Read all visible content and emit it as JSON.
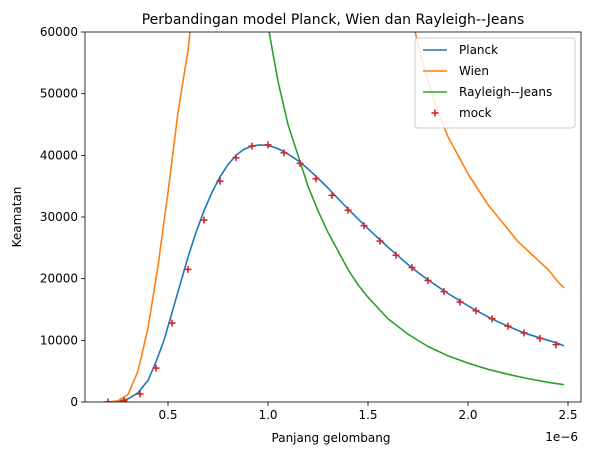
{
  "chart_data": {
    "type": "line",
    "title": "Perbandingan model Planck, Wien dan Rayleigh--Jeans",
    "xlabel": "Panjang gelombang",
    "ylabel": "Keamatan",
    "x_offset_label": "1e−6",
    "xlim": [
      0.085,
      2.565
    ],
    "ylim": [
      0,
      60000
    ],
    "xticks": [
      0.5,
      1.0,
      1.5,
      2.0,
      2.5
    ],
    "xtick_labels": [
      "0.5",
      "1.0",
      "1.5",
      "2.0",
      "2.5"
    ],
    "yticks": [
      0,
      10000,
      20000,
      30000,
      40000,
      50000,
      60000
    ],
    "ytick_labels": [
      "0",
      "10000",
      "20000",
      "30000",
      "40000",
      "50000",
      "60000"
    ],
    "legend_position": "upper right",
    "series": [
      {
        "name": "Planck",
        "kind": "line",
        "color": "#1f77b4",
        "x": [
          0.2,
          0.25,
          0.3,
          0.35,
          0.4,
          0.44,
          0.48,
          0.52,
          0.56,
          0.6,
          0.64,
          0.68,
          0.72,
          0.76,
          0.8,
          0.84,
          0.88,
          0.92,
          0.96,
          1.0,
          1.04,
          1.08,
          1.12,
          1.16,
          1.2,
          1.25,
          1.3,
          1.35,
          1.4,
          1.45,
          1.5,
          1.55,
          1.6,
          1.65,
          1.7,
          1.75,
          1.8,
          1.85,
          1.9,
          1.95,
          2.0,
          2.05,
          2.1,
          2.15,
          2.2,
          2.25,
          2.3,
          2.35,
          2.4,
          2.45,
          2.48
        ],
        "y": [
          0,
          100,
          500,
          1500,
          3500,
          6500,
          10000,
          14500,
          19000,
          23500,
          27500,
          31000,
          34000,
          36500,
          38500,
          40000,
          41000,
          41500,
          41700,
          41600,
          41200,
          40600,
          39800,
          38900,
          37800,
          36300,
          34700,
          33000,
          31300,
          29700,
          28100,
          26600,
          25100,
          23700,
          22300,
          21000,
          19800,
          18700,
          17600,
          16600,
          15600,
          14700,
          13800,
          13000,
          12300,
          11600,
          11000,
          10500,
          10000,
          9500,
          9100
        ]
      },
      {
        "name": "Wien",
        "kind": "line",
        "color": "#ff7f0e",
        "x": [
          0.2,
          0.25,
          0.3,
          0.35,
          0.4,
          0.45,
          0.5,
          0.55,
          0.6,
          0.62,
          1.7,
          1.75,
          1.8,
          1.85,
          1.9,
          1.95,
          2.0,
          2.05,
          2.1,
          2.15,
          2.2,
          2.25,
          2.3,
          2.35,
          2.4,
          2.45,
          2.48
        ],
        "y": [
          0,
          200,
          1200,
          5000,
          12000,
          22000,
          34000,
          47000,
          57000,
          63000,
          65000,
          58000,
          52000,
          47000,
          43000,
          40000,
          37000,
          34500,
          32000,
          30000,
          28000,
          26000,
          24500,
          23000,
          21500,
          19500,
          18500
        ]
      },
      {
        "name": "Rayleigh--Jeans",
        "kind": "line",
        "color": "#2ca02c",
        "x": [
          0.98,
          1.0,
          1.05,
          1.1,
          1.15,
          1.2,
          1.25,
          1.3,
          1.35,
          1.4,
          1.45,
          1.5,
          1.6,
          1.7,
          1.8,
          1.9,
          2.0,
          2.1,
          2.2,
          2.3,
          2.4,
          2.48
        ],
        "y": [
          66000,
          61000,
          52000,
          45000,
          40000,
          35000,
          31000,
          27500,
          24500,
          21500,
          19000,
          17000,
          13500,
          11000,
          9000,
          7500,
          6300,
          5300,
          4500,
          3800,
          3200,
          2800
        ]
      },
      {
        "name": "mock",
        "kind": "scatter",
        "marker": "+",
        "color": "#d62728",
        "x": [
          0.2,
          0.28,
          0.36,
          0.44,
          0.52,
          0.6,
          0.68,
          0.76,
          0.84,
          0.92,
          1.0,
          1.08,
          1.16,
          1.24,
          1.32,
          1.4,
          1.48,
          1.56,
          1.64,
          1.72,
          1.8,
          1.88,
          1.96,
          2.04,
          2.12,
          2.2,
          2.28,
          2.36,
          2.44
        ],
        "y": [
          0,
          200,
          1300,
          5500,
          12800,
          21500,
          29500,
          35800,
          39600,
          41500,
          41700,
          40400,
          38700,
          36200,
          33500,
          31100,
          28600,
          26100,
          23800,
          21800,
          19700,
          17900,
          16200,
          14800,
          13500,
          12300,
          11200,
          10300,
          9300
        ]
      }
    ]
  }
}
